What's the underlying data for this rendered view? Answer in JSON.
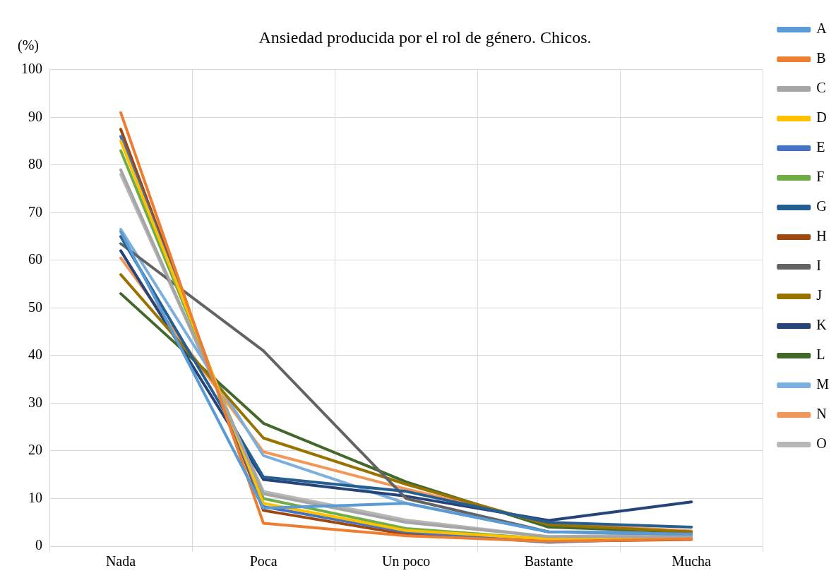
{
  "chart_data": {
    "type": "line",
    "title": "Ansiedad producida por el rol de género. Chicos.",
    "ylabel": "(%)",
    "categories": [
      "Nada",
      "Poca",
      "Un poco",
      "Bastante",
      "Mucha"
    ],
    "ylim": [
      0,
      100
    ],
    "yticks": [
      0,
      10,
      20,
      30,
      40,
      50,
      60,
      70,
      80,
      90,
      100
    ],
    "grid": true,
    "legend": "right",
    "marker": "none",
    "line_style": "solid",
    "series": [
      {
        "name": "A",
        "color": "#5b9bd5",
        "values": [
          66,
          8,
          9,
          3,
          2.5
        ]
      },
      {
        "name": "B",
        "color": "#ed7d31",
        "values": [
          91,
          4.8,
          2.2,
          1,
          1.5
        ]
      },
      {
        "name": "C",
        "color": "#a5a5a5",
        "values": [
          79,
          11,
          5,
          2,
          2
        ]
      },
      {
        "name": "D",
        "color": "#ffc000",
        "values": [
          85,
          9,
          3.3,
          1.5,
          2
        ]
      },
      {
        "name": "E",
        "color": "#4472c4",
        "values": [
          86,
          8.3,
          3,
          0.8,
          1.8
        ]
      },
      {
        "name": "F",
        "color": "#70ad47",
        "values": [
          83,
          10,
          3.7,
          1.5,
          2
        ]
      },
      {
        "name": "G",
        "color": "#255e91",
        "values": [
          65,
          14.5,
          11.5,
          5,
          4
        ]
      },
      {
        "name": "H",
        "color": "#9e480e",
        "values": [
          87.5,
          7.5,
          2.5,
          1,
          1.4
        ]
      },
      {
        "name": "I",
        "color": "#636363",
        "values": [
          63.5,
          41,
          10,
          3,
          2.5
        ]
      },
      {
        "name": "J",
        "color": "#997300",
        "values": [
          57,
          22.7,
          13,
          4.5,
          3
        ]
      },
      {
        "name": "K",
        "color": "#264478",
        "values": [
          62,
          14,
          10.5,
          5.4,
          9.3
        ]
      },
      {
        "name": "L",
        "color": "#43682b",
        "values": [
          53,
          25.8,
          13.5,
          4,
          3
        ]
      },
      {
        "name": "M",
        "color": "#7cafdd",
        "values": [
          66.5,
          19,
          9,
          3,
          3
        ]
      },
      {
        "name": "N",
        "color": "#f1975a",
        "values": [
          60.5,
          19.8,
          12,
          4.8,
          3.2
        ]
      },
      {
        "name": "O",
        "color": "#b7b7b7",
        "values": [
          78,
          11.5,
          5.5,
          2,
          2.5
        ]
      }
    ]
  }
}
